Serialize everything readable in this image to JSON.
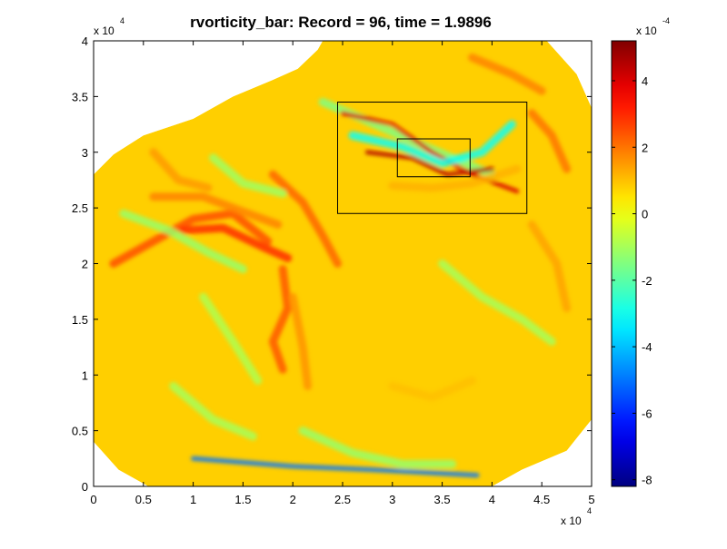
{
  "chart_data": {
    "type": "heatmap",
    "title": "rvorticity_bar:    Record = 96,    time = 1.9896",
    "x_axis": {
      "range": [
        0,
        50000
      ],
      "ticks": [
        0,
        5000,
        10000,
        15000,
        20000,
        25000,
        30000,
        35000,
        40000,
        45000,
        50000
      ],
      "tick_labels": [
        "0",
        "0.5",
        "1",
        "1.5",
        "2",
        "2.5",
        "3",
        "3.5",
        "4",
        "4.5",
        "5"
      ],
      "multiplier": "x 10",
      "multiplier_exponent": "4"
    },
    "y_axis": {
      "range": [
        0,
        40000
      ],
      "ticks": [
        0,
        5000,
        10000,
        15000,
        20000,
        25000,
        30000,
        35000,
        40000
      ],
      "tick_labels": [
        "0",
        "0.5",
        "1",
        "1.5",
        "2",
        "2.5",
        "3",
        "3.5",
        "4"
      ],
      "multiplier": "x 10",
      "multiplier_exponent": "4"
    },
    "colorbar": {
      "colormap": "jet",
      "range": [
        -0.00082,
        0.00052
      ],
      "ticks": [
        -0.0008,
        -0.0006,
        -0.0004,
        -0.0002,
        0,
        0.0002,
        0.0004
      ],
      "tick_labels": [
        "-8",
        "-6",
        "-4",
        "-2",
        "0",
        "2",
        "4"
      ],
      "multiplier": "x 10",
      "multiplier_exponent": "-4"
    },
    "nested_boxes": [
      {
        "name": "outer-domain-box",
        "x": [
          24500,
          43500
        ],
        "y": [
          24500,
          34500
        ]
      },
      {
        "name": "inner-domain-box",
        "x": [
          30500,
          37800
        ],
        "y": [
          27800,
          31200
        ]
      }
    ],
    "domain_corners": [
      [
        0,
        28000
      ],
      [
        2000,
        29800
      ],
      [
        5000,
        31500
      ],
      [
        10000,
        33000
      ],
      [
        14000,
        35000
      ],
      [
        18000,
        36500
      ],
      [
        20500,
        37500
      ],
      [
        22500,
        39200
      ],
      [
        23000,
        40000
      ],
      [
        45500,
        40000
      ],
      [
        48500,
        37000
      ],
      [
        50000,
        34000
      ],
      [
        50000,
        6000
      ],
      [
        47500,
        3200
      ],
      [
        43000,
        1500
      ],
      [
        40000,
        0
      ],
      [
        5500,
        0
      ],
      [
        2500,
        1500
      ],
      [
        0,
        4000
      ]
    ],
    "features": [
      {
        "name": "filament",
        "points": [
          [
            2000,
            20000
          ],
          [
            6000,
            22000
          ],
          [
            10000,
            24000
          ],
          [
            14000,
            24500
          ],
          [
            17500,
            22000
          ]
        ],
        "value": 0.00025
      },
      {
        "name": "filament",
        "points": [
          [
            9000,
            23000
          ],
          [
            13000,
            23200
          ],
          [
            17000,
            21500
          ],
          [
            19500,
            20500
          ]
        ],
        "value": 0.0003
      },
      {
        "name": "filament",
        "points": [
          [
            6000,
            26000
          ],
          [
            11000,
            26000
          ],
          [
            15500,
            24500
          ],
          [
            18500,
            23500
          ]
        ],
        "value": 0.00018
      },
      {
        "name": "filament",
        "points": [
          [
            18000,
            28000
          ],
          [
            21000,
            25500
          ],
          [
            23000,
            22500
          ],
          [
            24500,
            20000
          ]
        ],
        "value": 0.00022
      },
      {
        "name": "filament",
        "points": [
          [
            19000,
            19500
          ],
          [
            19500,
            16000
          ],
          [
            18000,
            13000
          ],
          [
            19000,
            10500
          ]
        ],
        "value": 0.00024
      },
      {
        "name": "filament",
        "points": [
          [
            20000,
            17000
          ],
          [
            21000,
            12500
          ],
          [
            21500,
            9000
          ]
        ],
        "value": 0.00016
      },
      {
        "name": "filament",
        "points": [
          [
            6000,
            30000
          ],
          [
            8500,
            27500
          ],
          [
            11500,
            26800
          ]
        ],
        "value": 0.00015
      },
      {
        "name": "filament",
        "points": [
          [
            3000,
            24500
          ],
          [
            7500,
            23000
          ],
          [
            11500,
            21000
          ],
          [
            15000,
            19500
          ]
        ],
        "value": -0.00012
      },
      {
        "name": "filament",
        "points": [
          [
            12000,
            29500
          ],
          [
            15000,
            27200
          ],
          [
            19000,
            26300
          ]
        ],
        "value": -0.00011
      },
      {
        "name": "filament",
        "points": [
          [
            23000,
            34500
          ],
          [
            27000,
            33000
          ],
          [
            32000,
            31000
          ],
          [
            36000,
            29500
          ],
          [
            40000,
            28000
          ]
        ],
        "value": -0.00015
      },
      {
        "name": "filament",
        "points": [
          [
            25000,
            33500
          ],
          [
            30000,
            32500
          ],
          [
            34000,
            30000
          ],
          [
            38000,
            28000
          ],
          [
            42500,
            26500
          ]
        ],
        "value": 0.0004
      },
      {
        "name": "filament",
        "points": [
          [
            26000,
            31500
          ],
          [
            31000,
            30500
          ],
          [
            35000,
            29000
          ],
          [
            39000,
            30000
          ],
          [
            42000,
            32500
          ]
        ],
        "value": -0.0003
      },
      {
        "name": "filament",
        "points": [
          [
            27500,
            30000
          ],
          [
            32000,
            29500
          ],
          [
            35500,
            28000
          ],
          [
            40000,
            28500
          ]
        ],
        "value": 0.00045
      },
      {
        "name": "filament",
        "points": [
          [
            30000,
            27000
          ],
          [
            34000,
            26800
          ],
          [
            38000,
            27200
          ],
          [
            42500,
            28500
          ]
        ],
        "value": 0.00012
      },
      {
        "name": "filament",
        "points": [
          [
            44000,
            33500
          ],
          [
            46000,
            31500
          ],
          [
            47500,
            28500
          ]
        ],
        "value": 0.0002
      },
      {
        "name": "filament",
        "points": [
          [
            44000,
            23500
          ],
          [
            46500,
            20000
          ],
          [
            47500,
            16000
          ]
        ],
        "value": 0.00014
      },
      {
        "name": "filament",
        "points": [
          [
            35000,
            20000
          ],
          [
            39000,
            17000
          ],
          [
            43000,
            15000
          ],
          [
            46000,
            13000
          ]
        ],
        "value": -0.0001
      },
      {
        "name": "filament",
        "points": [
          [
            21000,
            5000
          ],
          [
            26000,
            3000
          ],
          [
            31000,
            2000
          ],
          [
            36000,
            2000
          ]
        ],
        "value": -0.00012
      },
      {
        "name": "filament",
        "points": [
          [
            8000,
            9000
          ],
          [
            12000,
            6000
          ],
          [
            16000,
            4500
          ]
        ],
        "value": -0.0001
      },
      {
        "name": "filament",
        "points": [
          [
            11000,
            17000
          ],
          [
            14000,
            13000
          ],
          [
            16500,
            9500
          ]
        ],
        "value": -9e-05
      },
      {
        "name": "filament",
        "points": [
          [
            30000,
            9000
          ],
          [
            34000,
            8000
          ],
          [
            38000,
            9500
          ]
        ],
        "value": 0.0001
      },
      {
        "name": "filament",
        "points": [
          [
            38000,
            38500
          ],
          [
            42000,
            37000
          ],
          [
            45000,
            35500
          ]
        ],
        "value": 0.00018
      },
      {
        "name": "filament",
        "points": [
          [
            10000,
            2500
          ],
          [
            20000,
            1800
          ],
          [
            28000,
            1500
          ],
          [
            38500,
            1000
          ]
        ],
        "value": -0.0005
      }
    ]
  }
}
